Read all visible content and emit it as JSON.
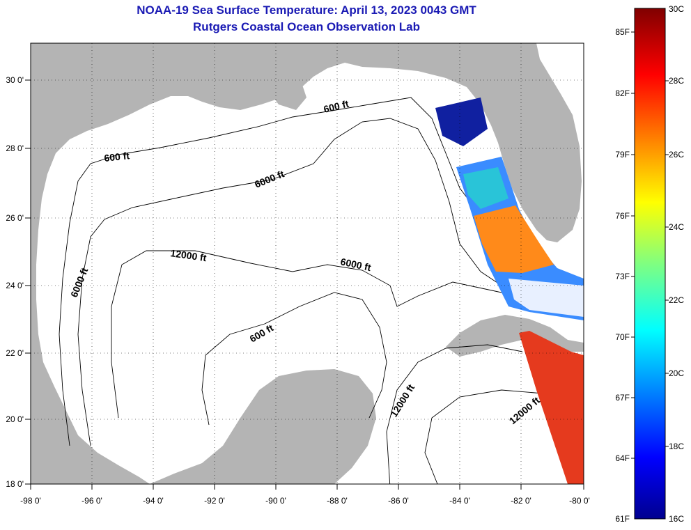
{
  "title": "NOAA-19 Sea Surface Temperature:  April 13, 2023 0043 GMT",
  "subtitle": "Rutgers Coastal Ocean Observation Lab",
  "map": {
    "lon_ticks": [
      "-98 0'",
      "-96 0'",
      "-94 0'",
      "-92 0'",
      "-90 0'",
      "-88 0'",
      "-86 0'",
      "-84 0'",
      "-82 0'",
      "-80 0'"
    ],
    "lat_ticks": [
      "30 0'",
      "28 0'",
      "26 0'",
      "24 0'",
      "22 0'",
      "20 0'",
      "18 0'"
    ],
    "contour_labels": [
      "600 ft",
      "600 ft",
      "6000 ft",
      "12000 ft",
      "6000 ft",
      "6000 ft",
      "600 ft",
      "12000 ft",
      "12000 ft"
    ],
    "land_color": "#b4b4b4",
    "ocean_color": "#ffffff"
  },
  "colorbar": {
    "fahrenheit_labels": [
      "85F",
      "82F",
      "79F",
      "76F",
      "73F",
      "70F",
      "67F",
      "64F",
      "61F"
    ],
    "celsius_labels": [
      "30C",
      "28C",
      "26C",
      "24C",
      "22C",
      "20C",
      "18C",
      "16C"
    ],
    "range_c": [
      16,
      30
    ],
    "colormap": "jet"
  }
}
